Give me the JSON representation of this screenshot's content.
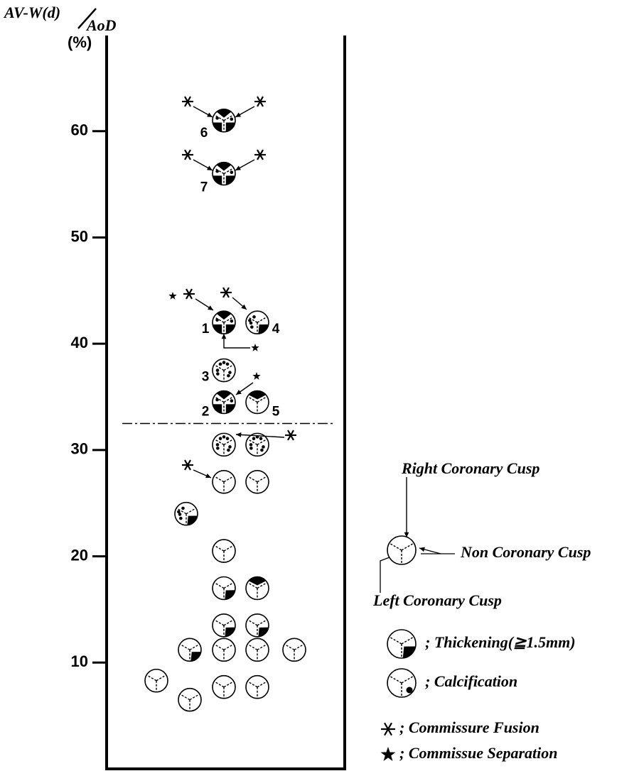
{
  "chart_data": {
    "type": "scatter",
    "y_label": {
      "numerator": "AV-W(d)",
      "denominator": "AoD",
      "unit": "(%)"
    },
    "ylim": [
      0,
      69
    ],
    "yticks": [
      10,
      20,
      30,
      40,
      50,
      60
    ],
    "threshold": 32.5,
    "points": [
      {
        "y": 61,
        "kind": "all",
        "label": "6"
      },
      {
        "y": 56,
        "kind": "all",
        "label": "7"
      },
      {
        "y": 42,
        "kind": "all",
        "label": "1"
      },
      {
        "y": 42,
        "kind": "thick-calc",
        "label": "4"
      },
      {
        "y": 37.5,
        "kind": "calc",
        "label": "3"
      },
      {
        "y": 34.5,
        "kind": "all",
        "label": "2"
      },
      {
        "y": 34.5,
        "kind": "top",
        "label": "5"
      },
      {
        "y": 30.5,
        "kind": "calc"
      },
      {
        "y": 30.5,
        "kind": "calc"
      },
      {
        "y": 27,
        "kind": "plain"
      },
      {
        "y": 27,
        "kind": "plain"
      },
      {
        "y": 24,
        "kind": "thick-calc"
      },
      {
        "y": 20.5,
        "kind": "plain"
      },
      {
        "y": 17,
        "kind": "thick"
      },
      {
        "y": 17,
        "kind": "top"
      },
      {
        "y": 13.5,
        "kind": "thick"
      },
      {
        "y": 13.5,
        "kind": "thick"
      },
      {
        "y": 11.2,
        "kind": "thick"
      },
      {
        "y": 11.2,
        "kind": "plain"
      },
      {
        "y": 11.2,
        "kind": "plain"
      },
      {
        "y": 11.2,
        "kind": "plain"
      },
      {
        "y": 8.3,
        "kind": "plain"
      },
      {
        "y": 7.7,
        "kind": "plain"
      },
      {
        "y": 7.7,
        "kind": "plain"
      },
      {
        "y": 6.5,
        "kind": "plain"
      }
    ],
    "legend": {
      "right": "Right Coronary Cusp",
      "non": "Non Coronary Cusp",
      "left": "Left Coronary Cusp",
      "thickening": "; Thickening(≧1.5mm)",
      "calcification": "; Calcification",
      "fusion": "; Commissure Fusion",
      "separation": "; Commissue Separation"
    }
  }
}
